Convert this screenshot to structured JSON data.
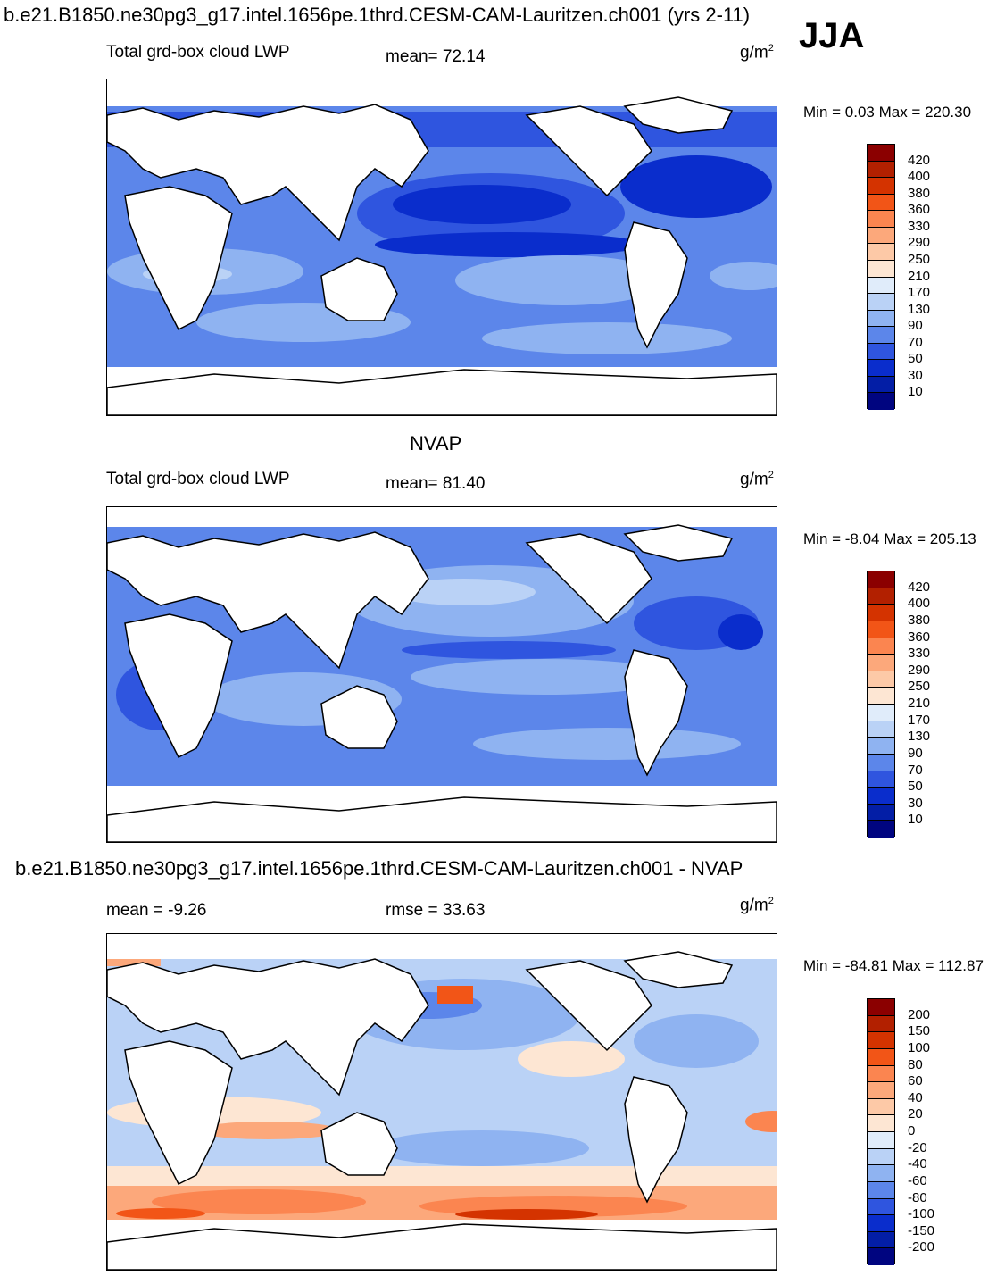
{
  "page": {
    "main_title": "b.e21.B1850.ne30pg3_g17.intel.1656pe.1thrd.CESM-CAM-Lauritzen.ch001 (yrs 2-11)",
    "season": "JJA"
  },
  "panels": [
    {
      "id": "model",
      "title": "",
      "left_label": "Total grd-box cloud LWP",
      "center_label": "mean=  72.14",
      "units": "g/m",
      "units_exp": "2",
      "minmax": "Min =   0.03 Max = 220.30",
      "colorbar_labels": [
        "420",
        "400",
        "380",
        "360",
        "330",
        "290",
        "250",
        "210",
        "170",
        "130",
        "90",
        "70",
        "50",
        "30",
        "10"
      ]
    },
    {
      "id": "obs",
      "title": "NVAP",
      "left_label": "Total grd-box cloud LWP",
      "center_label": "mean=  81.40",
      "units": "g/m",
      "units_exp": "2",
      "minmax": "Min =  -8.04 Max = 205.13",
      "colorbar_labels": [
        "420",
        "400",
        "380",
        "360",
        "330",
        "290",
        "250",
        "210",
        "170",
        "130",
        "90",
        "70",
        "50",
        "30",
        "10"
      ]
    },
    {
      "id": "diff",
      "title": "b.e21.B1850.ne30pg3_g17.intel.1656pe.1thrd.CESM-CAM-Lauritzen.ch001 - NVAP",
      "left_label": "mean =  -9.26",
      "center_label": "rmse =  33.63",
      "units": "g/m",
      "units_exp": "2",
      "minmax": "Min = -84.81 Max = 112.87",
      "colorbar_labels": [
        "200",
        "150",
        "100",
        "80",
        "60",
        "40",
        "20",
        "0",
        "-20",
        "-40",
        "-60",
        "-80",
        "-100",
        "-150",
        "-200"
      ]
    }
  ],
  "colors": {
    "abs_scale": [
      "#8b0000",
      "#b22000",
      "#d43300",
      "#f25517",
      "#fb8550",
      "#fca87b",
      "#fdc9a7",
      "#fde6d3",
      "#e0ecfa",
      "#bad2f6",
      "#8fb3f1",
      "#5c86ea",
      "#2f55df",
      "#0a2dcc",
      "#031ea6",
      "#000580"
    ],
    "diff_scale": [
      "#8b0000",
      "#b22000",
      "#d43300",
      "#f25517",
      "#fb8550",
      "#fca87b",
      "#fdc9a7",
      "#fde6d3",
      "#e0ecfa",
      "#bad2f6",
      "#8fb3f1",
      "#5c86ea",
      "#2f55df",
      "#0a2dcc",
      "#031ea6",
      "#000580"
    ]
  }
}
